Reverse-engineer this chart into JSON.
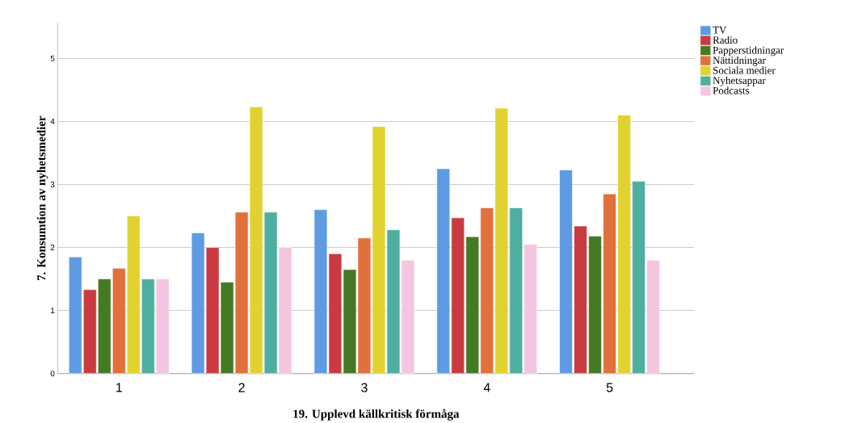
{
  "chart_data": {
    "type": "bar",
    "xlabel": "19. Upplevd källkritisk förmåga",
    "ylabel": "7. Konsumtion av nyhetsmedier",
    "categories": [
      "1",
      "2",
      "3",
      "4",
      "5"
    ],
    "series": [
      {
        "name": "TV",
        "color": "#5e9be2",
        "values": [
          1.85,
          2.23,
          2.6,
          3.25,
          3.23
        ]
      },
      {
        "name": "Radio",
        "color": "#c93b40",
        "values": [
          1.33,
          2.0,
          1.9,
          2.47,
          2.34
        ]
      },
      {
        "name": "Papperstidningar",
        "color": "#457a24",
        "values": [
          1.5,
          1.45,
          1.65,
          2.17,
          2.18
        ]
      },
      {
        "name": "Nättidningar",
        "color": "#e2703c",
        "values": [
          1.67,
          2.56,
          2.15,
          2.63,
          2.85
        ]
      },
      {
        "name": "Sociala medier",
        "color": "#e1d230",
        "values": [
          2.5,
          4.23,
          3.92,
          4.21,
          4.1
        ]
      },
      {
        "name": "Nyhetsappar",
        "color": "#4eafa0",
        "values": [
          1.5,
          2.56,
          2.28,
          2.63,
          3.05
        ]
      },
      {
        "name": "Podcasts",
        "color": "#f4c6e0",
        "values": [
          1.5,
          2.0,
          1.8,
          2.05,
          1.8
        ]
      }
    ],
    "ylim": [
      0,
      5.56
    ],
    "yticks": [
      0,
      1,
      2,
      3,
      4,
      5
    ],
    "grid": "y",
    "legend": "top right"
  }
}
